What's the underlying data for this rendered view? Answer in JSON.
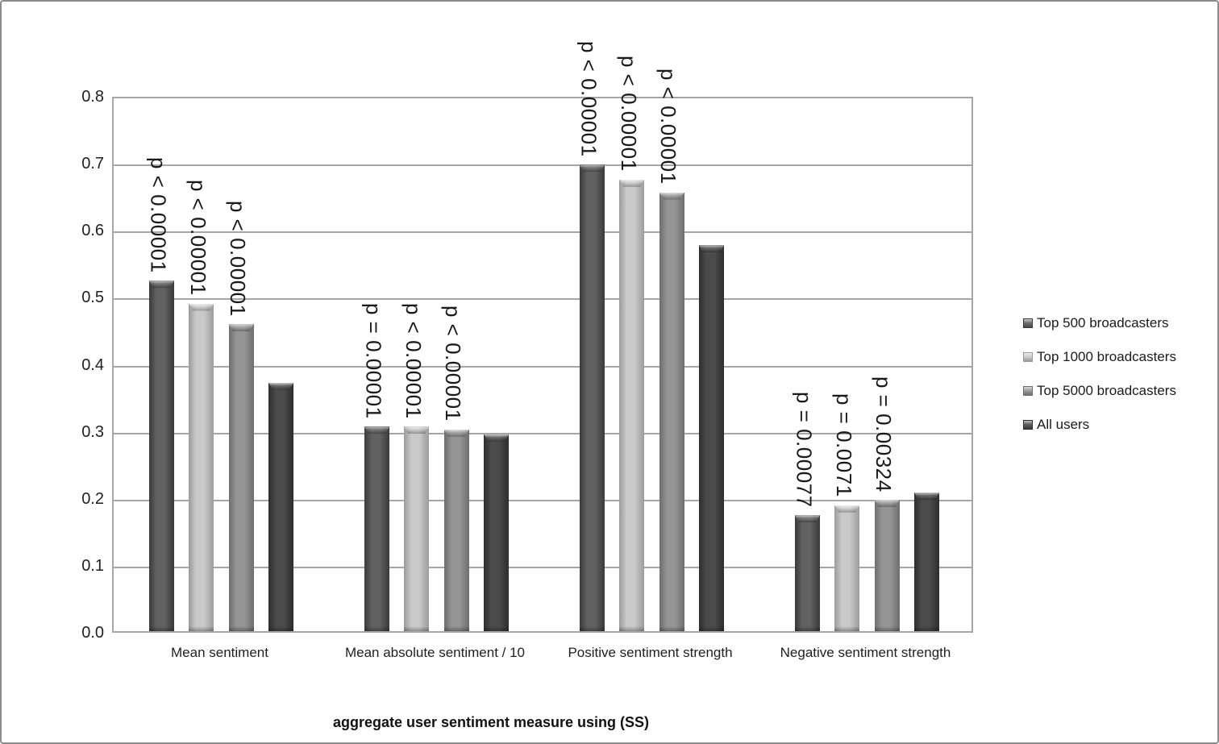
{
  "chart_data": {
    "type": "bar",
    "title": "",
    "xlabel": "aggregate user sentiment measure using (SS)",
    "ylabel": "",
    "ylim": [
      0,
      0.8
    ],
    "ytick_labels": [
      "0.0",
      "0.1",
      "0.2",
      "0.3",
      "0.4",
      "0.5",
      "0.6",
      "0.7",
      "0.8"
    ],
    "grid": true,
    "legend_position": "right",
    "categories": [
      "Mean sentiment",
      "Mean absolute sentiment / 10",
      "Positive sentiment strength",
      "Negative sentiment strength"
    ],
    "series": [
      {
        "name": "Top 500 broadcasters",
        "values": [
          0.523,
          0.305,
          0.696,
          0.173
        ],
        "p_labels": [
          "p < 0.00001",
          "p = 0.00001",
          "p < 0.00001",
          "p = 0.00077"
        ],
        "colors": {
          "fill": "#616161",
          "edge": "#3a3a3a",
          "cap": "#4d4d4d"
        }
      },
      {
        "name": "Top 1000 broadcasters",
        "values": [
          0.489,
          0.305,
          0.674,
          0.188
        ],
        "p_labels": [
          "p < 0.00001",
          "p < 0.00001",
          "p < 0.00001",
          "p = 0.0071"
        ],
        "colors": {
          "fill": "#c9c9c9",
          "edge": "#9b9b9b",
          "cap": "#b4b4b4"
        }
      },
      {
        "name": "Top 5000 broadcasters",
        "values": [
          0.458,
          0.301,
          0.655,
          0.196
        ],
        "p_labels": [
          "p < 0.00001",
          "p < 0.00001",
          "p < 0.00001",
          "p = 0.00324"
        ],
        "colors": {
          "fill": "#959595",
          "edge": "#6d6d6d",
          "cap": "#808080"
        }
      },
      {
        "name": "All users",
        "values": [
          0.371,
          0.294,
          0.576,
          0.207
        ],
        "p_labels": [
          "",
          "",
          "",
          ""
        ],
        "colors": {
          "fill": "#4b4b4b",
          "edge": "#2d2d2d",
          "cap": "#3a3a3a"
        }
      }
    ],
    "axis_color": "#a6a6a6",
    "text_color": "#1f1f1f"
  }
}
